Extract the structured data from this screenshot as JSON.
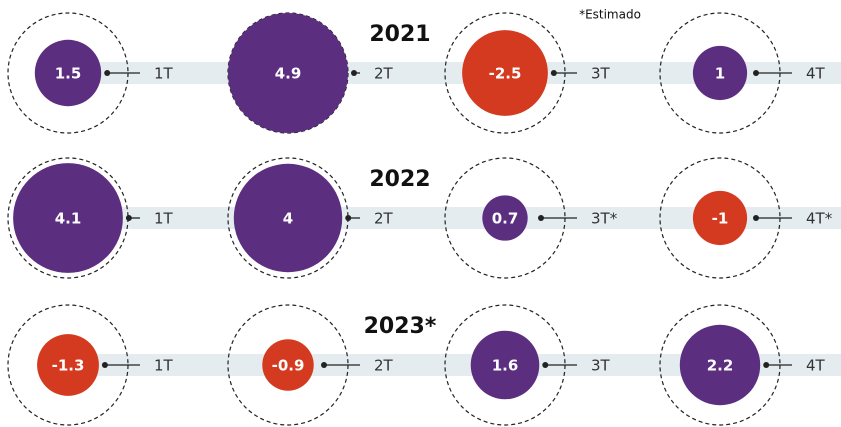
{
  "chart_data": {
    "type": "bubble",
    "note": "*Estimado",
    "positive_color": "#5c2e80",
    "negative_color": "#d43a1f",
    "rows": [
      {
        "title": "2021",
        "categories": [
          "1T",
          "2T",
          "3T",
          "4T"
        ],
        "values": [
          1.5,
          4.9,
          -2.5,
          1
        ]
      },
      {
        "title": "2022",
        "categories": [
          "1T",
          "2T",
          "3T*",
          "4T*"
        ],
        "values": [
          4.1,
          4,
          0.7,
          -1
        ]
      },
      {
        "title": "2023*",
        "categories": [
          "1T",
          "2T",
          "3T",
          "4T"
        ],
        "values": [
          -1.3,
          -0.9,
          1.6,
          2.2
        ]
      }
    ]
  }
}
